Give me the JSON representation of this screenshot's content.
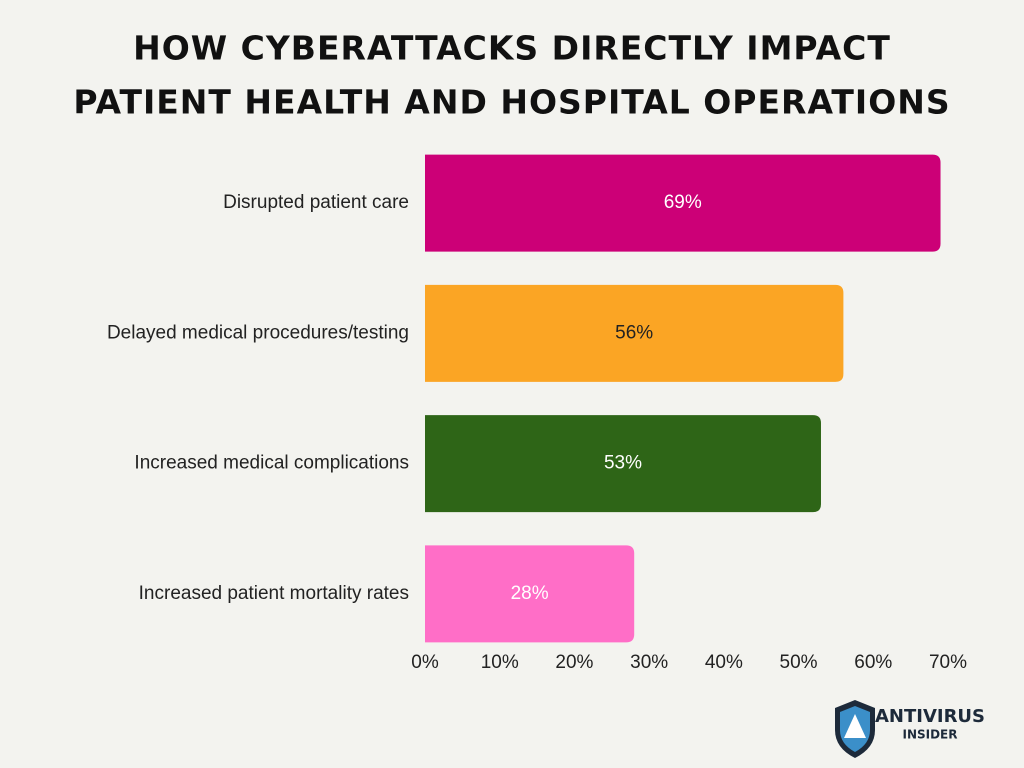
{
  "chart_data": {
    "type": "hbar",
    "title": [
      "HOW CYBERATTACKS DIRECTLY IMPACT",
      "PATIENT HEALTH AND HOSPITAL OPERATIONS"
    ],
    "categories": [
      "Disrupted patient care",
      "Delayed medical procedures/testing",
      "Increased medical complications",
      "Increased patient mortality rates"
    ],
    "values": [
      69,
      56,
      53,
      28
    ],
    "value_labels": [
      "69%",
      "56%",
      "53%",
      "28%"
    ],
    "colors": [
      "#cc0077",
      "#fba524",
      "#2e6517",
      "#ff6ec7"
    ],
    "value_label_colors": [
      "#ffffff",
      "#222222",
      "#ffffff",
      "#ffffff"
    ],
    "xlim": [
      0,
      70
    ],
    "xticks": [
      {
        "value": 0,
        "label": "0%"
      },
      {
        "value": 10,
        "label": "10%"
      },
      {
        "value": 20,
        "label": "20%"
      },
      {
        "value": 30,
        "label": "30%"
      },
      {
        "value": 40,
        "label": "40%"
      },
      {
        "value": 50,
        "label": "50%"
      },
      {
        "value": 60,
        "label": "60%"
      },
      {
        "value": 70,
        "label": "70%"
      }
    ],
    "grid": false
  },
  "brand": {
    "name": "ANTIVIRUS",
    "tagline": "INSIDER"
  }
}
